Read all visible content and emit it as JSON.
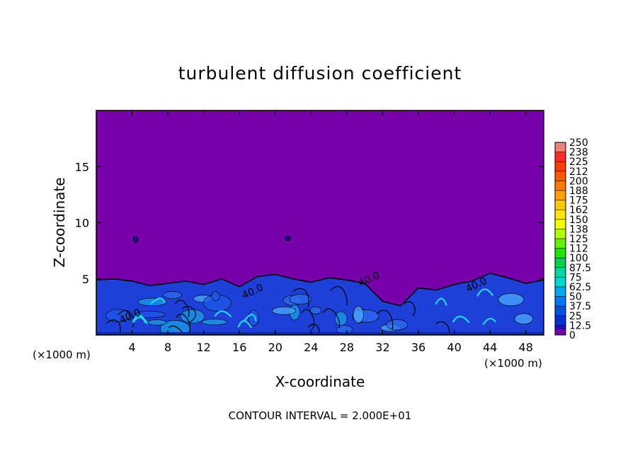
{
  "chart_data": {
    "type": "heatmap",
    "title": "turbulent diffusion coefficient",
    "xlabel": "X-coordinate",
    "ylabel": "Z-coordinate",
    "x_unit": "(×1000 m)",
    "x_unit_right": "(×1000 m)",
    "footer": "CONTOUR INTERVAL = 2.000E+01",
    "xlim": [
      0,
      50
    ],
    "ylim": [
      0,
      20
    ],
    "x_ticks": [
      4,
      8,
      12,
      16,
      20,
      24,
      28,
      32,
      36,
      40,
      44,
      48
    ],
    "y_ticks": [
      5,
      10,
      15
    ],
    "background_value": 0,
    "contour_labels": [
      {
        "x": 2.8,
        "z": 1.0,
        "text": "40.0"
      },
      {
        "x": 16.5,
        "z": 3.2,
        "text": "40.0"
      },
      {
        "x": 29.5,
        "z": 4.3,
        "text": "40.0"
      },
      {
        "x": 41.5,
        "z": 3.8,
        "text": "40.0"
      }
    ],
    "boundary_layer_top_profile": {
      "x": [
        0,
        2,
        4,
        6,
        8,
        10,
        12,
        14,
        16,
        18,
        20,
        22,
        24,
        26,
        28,
        30,
        32,
        34,
        36,
        38,
        40,
        42,
        44,
        46,
        48,
        50
      ],
      "z": [
        4.9,
        5.0,
        4.8,
        4.4,
        4.6,
        4.8,
        4.5,
        5.0,
        4.3,
        5.2,
        5.4,
        5.0,
        4.7,
        5.1,
        4.9,
        4.6,
        3.0,
        2.6,
        4.2,
        4.0,
        4.5,
        4.8,
        5.5,
        5.1,
        4.6,
        4.9
      ]
    },
    "colorbar": {
      "labels": [
        "250",
        "238",
        "225",
        "212",
        "200",
        "188",
        "175",
        "162",
        "150",
        "138",
        "125",
        "112",
        "100",
        "87.5",
        "75",
        "62.5",
        "50",
        "37.5",
        "25",
        "12.5",
        "0"
      ],
      "colors": [
        "#f08080",
        "#ff2a2a",
        "#ff3c00",
        "#ff5a00",
        "#ff7a00",
        "#ffa000",
        "#ffc800",
        "#ffe600",
        "#f0ff00",
        "#b4ff00",
        "#64f000",
        "#1ee600",
        "#00d24b",
        "#00d7a0",
        "#00d7d2",
        "#00aaf0",
        "#0078f5",
        "#0050e6",
        "#0032d2",
        "#1e14b4",
        "#7800aa"
      ]
    }
  }
}
